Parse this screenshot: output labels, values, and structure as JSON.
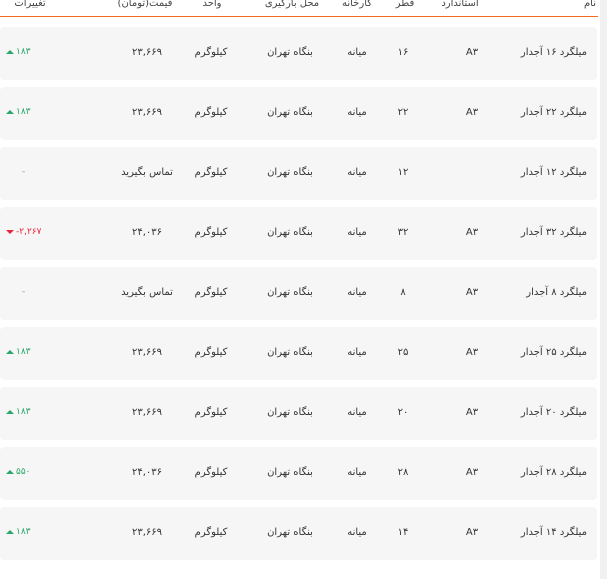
{
  "headers": {
    "name": "نام",
    "standard": "استاندارد",
    "diameter": "قطر",
    "factory": "کارخانه",
    "location": "محل بارگیری",
    "unit": "واحد",
    "price": "قیمت(تومان)",
    "change": "تغییرات"
  },
  "colors": {
    "accent": "#f26b1d",
    "up": "#2aa66a",
    "down": "#e8263a"
  },
  "rows": [
    {
      "name": "میلگرد ۱۶ آجدار",
      "standard": "A۳",
      "diameter": "۱۶",
      "factory": "میانه",
      "location": "بنگاه تهران",
      "unit": "کیلوگرم",
      "price": "۲۳,۶۶۹",
      "change": "۱۸۳",
      "dir": "up"
    },
    {
      "name": "میلگرد ۲۲ آجدار",
      "standard": "A۳",
      "diameter": "۲۲",
      "factory": "میانه",
      "location": "بنگاه تهران",
      "unit": "کیلوگرم",
      "price": "۲۳,۶۶۹",
      "change": "۱۸۳",
      "dir": "up"
    },
    {
      "name": "میلگرد ۱۲ آجدار",
      "standard": "",
      "diameter": "۱۲",
      "factory": "میانه",
      "location": "بنگاه تهران",
      "unit": "کیلوگرم",
      "price": "تماس بگیرید",
      "change": "-",
      "dir": "none"
    },
    {
      "name": "میلگرد ۳۲ آجدار",
      "standard": "A۳",
      "diameter": "۳۲",
      "factory": "میانه",
      "location": "بنگاه تهران",
      "unit": "کیلوگرم",
      "price": "۲۴,۰۳۶",
      "change": "-۲,۲۶۷",
      "dir": "down"
    },
    {
      "name": "میلگرد ۸ آجدار",
      "standard": "A۳",
      "diameter": "۸",
      "factory": "میانه",
      "location": "بنگاه تهران",
      "unit": "کیلوگرم",
      "price": "تماس بگیرید",
      "change": "-",
      "dir": "none"
    },
    {
      "name": "میلگرد ۲۵ آجدار",
      "standard": "A۳",
      "diameter": "۲۵",
      "factory": "میانه",
      "location": "بنگاه تهران",
      "unit": "کیلوگرم",
      "price": "۲۳,۶۶۹",
      "change": "۱۸۳",
      "dir": "up"
    },
    {
      "name": "میلگرد ۲۰ آجدار",
      "standard": "A۳",
      "diameter": "۲۰",
      "factory": "میانه",
      "location": "بنگاه تهران",
      "unit": "کیلوگرم",
      "price": "۲۳,۶۶۹",
      "change": "۱۸۳",
      "dir": "up"
    },
    {
      "name": "میلگرد ۲۸ آجدار",
      "standard": "A۳",
      "diameter": "۲۸",
      "factory": "میانه",
      "location": "بنگاه تهران",
      "unit": "کیلوگرم",
      "price": "۲۴,۰۳۶",
      "change": "۵۵۰",
      "dir": "up"
    },
    {
      "name": "میلگرد ۱۴ آجدار",
      "standard": "A۳",
      "diameter": "۱۴",
      "factory": "میانه",
      "location": "بنگاه تهران",
      "unit": "کیلوگرم",
      "price": "۲۳,۶۶۹",
      "change": "۱۸۳",
      "dir": "up"
    }
  ]
}
